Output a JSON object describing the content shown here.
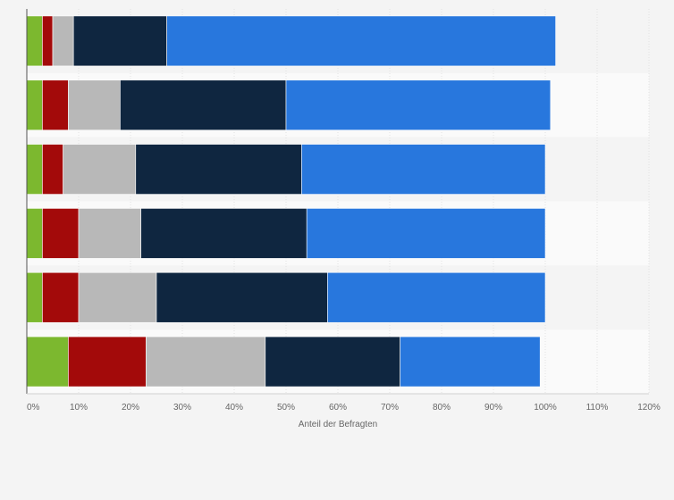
{
  "chart_data": {
    "type": "bar",
    "orientation": "horizontal",
    "stacked": true,
    "title": "",
    "xlabel": "Anteil der Befragten",
    "ylabel": "",
    "xlim": [
      0,
      120
    ],
    "xticks": [
      0,
      10,
      20,
      30,
      40,
      50,
      60,
      70,
      80,
      90,
      100,
      110,
      120
    ],
    "tick_labels": [
      "0%",
      "10%",
      "20%",
      "30%",
      "40%",
      "50%",
      "60%",
      "70%",
      "80%",
      "90%",
      "100%",
      "110%",
      "120%"
    ],
    "categories": [
      "",
      "",
      "",
      "",
      "",
      ""
    ],
    "grid": true,
    "legend": "none",
    "series": [
      {
        "color": "#7cb82f",
        "values": [
          3,
          3,
          3,
          3,
          3,
          8
        ]
      },
      {
        "color": "#a30a0a",
        "values": [
          2,
          5,
          4,
          7,
          7,
          15
        ]
      },
      {
        "color": "#b8b8b8",
        "values": [
          4,
          10,
          14,
          12,
          15,
          23
        ]
      },
      {
        "color": "#0f2640",
        "values": [
          18,
          32,
          32,
          32,
          33,
          26
        ]
      },
      {
        "color": "#2877dd",
        "values": [
          75,
          51,
          47,
          46,
          42,
          27
        ]
      }
    ],
    "colors": {
      "background": "#f4f4f4",
      "band_light": "#fafafa",
      "band_dark": "#f4f4f4",
      "gridline": "#e2e2e2",
      "axis": "#555555"
    }
  }
}
